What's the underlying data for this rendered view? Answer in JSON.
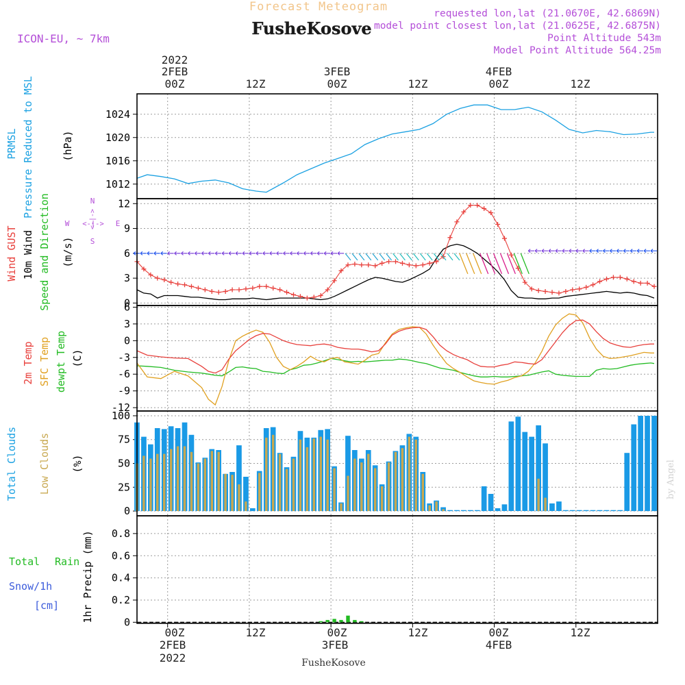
{
  "header": {
    "title": "Forecast Meteogram",
    "location": "FusheKosove",
    "model": "ICON-EU, ~ 7km",
    "requested": "requested lon,lat (21.0670E, 42.6869N)",
    "closest": "model point closest lon,lat (21.0625E, 42.6875N)",
    "altitude": "Point Altitude 543m",
    "model_altitude": "Model Point Altitude 564.25m"
  },
  "time_axis": {
    "top_year": "2022",
    "top_days": [
      "2FEB",
      "3FEB",
      "4FEB"
    ],
    "top_hours": [
      "00Z",
      "12Z",
      "00Z",
      "12Z",
      "00Z",
      "12Z"
    ],
    "bottom_hours": [
      "00Z",
      "12Z",
      "00Z",
      "12Z",
      "00Z",
      "12Z"
    ],
    "bottom_days": [
      "2FEB",
      "3FEB",
      "4FEB"
    ],
    "bottom_year": "2022",
    "footer": "FusheKosove"
  },
  "credit": "by Angel",
  "panels": {
    "pressure": {
      "labels": [
        "PRMSL",
        "Pressure Reduced to MSL",
        "(hPa)"
      ],
      "ticks": [
        "1012",
        "1016",
        "1020",
        "1024"
      ]
    },
    "wind": {
      "labels": [
        "Wind GUST",
        "10m Wind",
        "Speed and Direction",
        "(m/s)"
      ],
      "compass": {
        "n": "N",
        "s": "S",
        "w": "W",
        "e": "E",
        "arrow": "<-|->"
      },
      "ticks": [
        "0",
        "3",
        "6",
        "9",
        "12"
      ]
    },
    "temp": {
      "labels": [
        "2m Temp",
        "SFC Temp",
        "dewpt Temp",
        "(C)"
      ],
      "ticks": [
        "-12",
        "-9",
        "-6",
        "-3",
        "0",
        "3",
        "6"
      ]
    },
    "clouds": {
      "labels": [
        "Total Clouds",
        "Low Clouds",
        "(%)"
      ],
      "ticks": [
        "0",
        "25",
        "50",
        "75",
        "100"
      ]
    },
    "precip": {
      "labels": [
        "Total",
        "Rain",
        "Snow/1h",
        "[cm]",
        "1hr Precip (mm)"
      ],
      "ticks": [
        "0",
        "0.2",
        "0.4",
        "0.6",
        "0.8"
      ]
    }
  },
  "colors": {
    "pressure": "#1ba1e2",
    "gust": "#e8403c",
    "wind": "#000000",
    "t2m": "#e8403c",
    "sfc": "#e0a020",
    "dew": "#22bb22",
    "total_cloud": "#1a9ae6",
    "low_cloud": "#c8a850",
    "rain": "#22bb22",
    "snow": "#3b5bdb",
    "purple": "#b44fd8",
    "title_orange": "#f2c58a"
  },
  "chart_data": [
    {
      "id": "pressure",
      "type": "line",
      "x_unit": "hours since 2022-02-02 00Z",
      "x": [
        -4.5,
        -3,
        -1,
        1,
        3,
        5,
        7,
        9,
        11,
        13,
        14.5,
        17,
        19,
        21,
        23,
        25,
        27,
        29,
        31,
        33,
        35,
        37,
        39,
        41,
        43,
        45,
        47,
        49,
        51,
        53,
        55,
        57,
        59,
        61,
        63,
        65,
        67,
        69,
        71,
        71.5
      ],
      "values": [
        1013.0,
        1013.6,
        1013.3,
        1012.9,
        1012.1,
        1012.5,
        1012.7,
        1012.2,
        1011.2,
        1010.8,
        1010.6,
        1012.2,
        1013.6,
        1014.6,
        1015.6,
        1016.4,
        1017.2,
        1018.8,
        1019.8,
        1020.6,
        1021.0,
        1021.4,
        1022.4,
        1024.0,
        1025.0,
        1025.6,
        1025.6,
        1024.8,
        1024.8,
        1025.2,
        1024.4,
        1023.0,
        1021.4,
        1020.8,
        1021.2,
        1021.0,
        1020.5,
        1020.6,
        1020.9,
        1020.9
      ],
      "y_label": "(hPa)",
      "ylim": [
        1009.5,
        1027.5
      ]
    },
    {
      "id": "wind",
      "type": "line",
      "x": [
        -4.5,
        -3.5,
        -2.5,
        -1.5,
        -0.5,
        0.5,
        1.5,
        2.5,
        3.5,
        4.5,
        5.5,
        6.5,
        7.5,
        8.5,
        9.5,
        10.5,
        11.5,
        12.5,
        13.5,
        14.5,
        15.5,
        16.5,
        17.5,
        18.5,
        19.5,
        20.5,
        21.5,
        22.5,
        23.5,
        24.5,
        25.5,
        26.5,
        27.5,
        28.5,
        29.5,
        30.5,
        31.5,
        32.5,
        33.5,
        34.5,
        35.5,
        36.5,
        37.5,
        38.5,
        39.5,
        40.5,
        41.5,
        42.5,
        43.5,
        44.5,
        45.5,
        46.5,
        47.5,
        48.5,
        49.5,
        50.5,
        51.5,
        52.5,
        53.5,
        54.5,
        55.5,
        56.5,
        57.5,
        58.5,
        59.5,
        60.5,
        61.5,
        62.5,
        63.5,
        64.5,
        65.5,
        66.5,
        67.5,
        68.5,
        69.5,
        70.5,
        71.5
      ],
      "series": [
        {
          "name": "Wind GUST",
          "values": [
            5.0,
            4.1,
            3.4,
            3.0,
            2.8,
            2.5,
            2.3,
            2.2,
            2.0,
            1.8,
            1.6,
            1.4,
            1.3,
            1.4,
            1.6,
            1.6,
            1.7,
            1.8,
            2.0,
            2.0,
            1.8,
            1.6,
            1.3,
            1.0,
            0.8,
            0.6,
            0.7,
            0.9,
            1.6,
            2.7,
            3.9,
            4.6,
            4.7,
            4.6,
            4.6,
            4.5,
            4.8,
            5.0,
            5.0,
            4.8,
            4.6,
            4.5,
            4.6,
            4.8,
            5.0,
            5.6,
            7.9,
            9.8,
            11.0,
            11.8,
            11.8,
            11.4,
            10.9,
            9.5,
            7.8,
            5.8,
            4.2,
            2.5,
            1.7,
            1.5,
            1.4,
            1.3,
            1.2,
            1.4,
            1.6,
            1.7,
            1.9,
            2.2,
            2.6,
            2.9,
            3.1,
            3.1,
            2.9,
            2.6,
            2.4,
            2.4,
            2.0
          ]
        },
        {
          "name": "10m Wind",
          "values": [
            1.6,
            1.2,
            1.1,
            0.6,
            0.9,
            0.9,
            0.9,
            0.8,
            0.7,
            0.7,
            0.6,
            0.5,
            0.4,
            0.4,
            0.5,
            0.5,
            0.5,
            0.6,
            0.5,
            0.4,
            0.5,
            0.6,
            0.6,
            0.6,
            0.6,
            0.6,
            0.5,
            0.4,
            0.5,
            0.8,
            1.2,
            1.6,
            2.0,
            2.4,
            2.8,
            3.1,
            3.0,
            2.8,
            2.6,
            2.5,
            2.8,
            3.2,
            3.6,
            4.1,
            5.4,
            6.5,
            6.9,
            7.1,
            6.9,
            6.5,
            6.0,
            5.3,
            4.6,
            3.8,
            2.8,
            1.5,
            0.7,
            0.6,
            0.6,
            0.5,
            0.5,
            0.6,
            0.6,
            0.8,
            0.9,
            1.0,
            1.1,
            1.2,
            1.3,
            1.4,
            1.3,
            1.2,
            1.3,
            1.2,
            1.0,
            0.9,
            0.6
          ]
        }
      ],
      "y_label": "(m/s)",
      "ylim": [
        -0.3,
        12.6
      ]
    },
    {
      "id": "temperature",
      "type": "line",
      "x": [
        -4.5,
        -3,
        -1,
        1,
        3,
        5,
        6,
        7,
        8,
        9,
        10,
        11,
        12,
        13,
        14,
        15,
        16,
        17,
        18,
        19,
        20,
        21,
        22,
        23,
        24,
        25,
        26,
        27,
        28,
        29,
        30,
        31,
        32,
        33,
        34,
        35,
        36,
        37,
        38,
        39,
        40,
        41,
        42,
        43,
        44,
        45,
        46,
        47,
        48,
        49,
        50,
        51,
        52,
        53,
        54,
        55,
        56,
        57,
        58,
        59,
        60,
        61,
        62,
        63,
        64,
        65,
        66,
        67,
        68,
        69,
        70,
        71,
        71.5
      ],
      "series": [
        {
          "name": "2m Temp",
          "values": [
            -1.8,
            -2.6,
            -2.9,
            -3.1,
            -3.2,
            -4.6,
            -5.5,
            -5.8,
            -5.2,
            -3.3,
            -1.8,
            -0.8,
            0.2,
            0.9,
            1.3,
            1.2,
            0.6,
            0.0,
            -0.4,
            -0.7,
            -0.8,
            -0.9,
            -0.7,
            -0.6,
            -0.8,
            -1.2,
            -1.4,
            -1.5,
            -1.5,
            -1.7,
            -2.0,
            -1.8,
            -0.6,
            1.0,
            1.7,
            2.1,
            2.3,
            2.4,
            2.0,
            0.7,
            -0.8,
            -1.8,
            -2.5,
            -3.0,
            -3.4,
            -4.1,
            -4.6,
            -4.7,
            -4.7,
            -4.4,
            -4.2,
            -3.8,
            -3.9,
            -4.1,
            -4.2,
            -3.4,
            -1.8,
            -0.2,
            1.4,
            2.7,
            3.6,
            3.7,
            3.0,
            1.6,
            0.4,
            -0.4,
            -0.8,
            -1.1,
            -1.2,
            -0.9,
            -0.7,
            -0.6,
            -0.6
          ]
        },
        {
          "name": "SFC Temp",
          "values": [
            -4.0,
            -6.5,
            -6.8,
            -5.5,
            -6.3,
            -8.4,
            -10.5,
            -11.5,
            -8.2,
            -3.5,
            0.0,
            0.8,
            1.4,
            1.9,
            1.5,
            -0.3,
            -3.0,
            -4.6,
            -5.2,
            -4.6,
            -3.8,
            -2.8,
            -3.5,
            -3.8,
            -3.2,
            -3.0,
            -3.8,
            -4.0,
            -4.2,
            -3.5,
            -2.6,
            -2.3,
            -0.4,
            1.2,
            2.0,
            2.3,
            2.5,
            2.4,
            1.2,
            -0.8,
            -2.5,
            -4.1,
            -5.0,
            -5.7,
            -6.5,
            -7.2,
            -7.5,
            -7.7,
            -7.8,
            -7.4,
            -7.1,
            -6.6,
            -6.3,
            -5.5,
            -4.0,
            -1.9,
            0.8,
            2.8,
            4.0,
            4.8,
            4.6,
            3.2,
            0.5,
            -1.5,
            -2.8,
            -3.2,
            -3.1,
            -2.9,
            -2.7,
            -2.4,
            -2.1,
            -2.2,
            -2.2
          ]
        },
        {
          "name": "dewpt Temp",
          "values": [
            -4.5,
            -4.6,
            -4.8,
            -5.3,
            -5.6,
            -5.8,
            -6.0,
            -6.2,
            -6.3,
            -5.6,
            -4.8,
            -4.7,
            -4.9,
            -5.0,
            -5.5,
            -5.6,
            -5.8,
            -5.9,
            -5.2,
            -4.9,
            -4.4,
            -4.3,
            -4.0,
            -3.6,
            -3.2,
            -3.4,
            -3.6,
            -3.8,
            -3.7,
            -3.8,
            -3.7,
            -3.6,
            -3.5,
            -3.5,
            -3.3,
            -3.4,
            -3.6,
            -3.9,
            -4.1,
            -4.5,
            -4.9,
            -5.1,
            -5.3,
            -5.7,
            -6.0,
            -6.3,
            -6.5,
            -6.5,
            -6.4,
            -6.5,
            -6.5,
            -6.4,
            -6.3,
            -6.2,
            -5.9,
            -5.6,
            -5.4,
            -6.0,
            -6.2,
            -6.3,
            -6.4,
            -6.4,
            -6.4,
            -5.3,
            -5.0,
            -5.1,
            -5.0,
            -4.7,
            -4.4,
            -4.2,
            -4.1,
            -4.0,
            -4.1
          ]
        }
      ],
      "y_label": "(C)",
      "ylim": [
        -12.6,
        6.3
      ]
    },
    {
      "id": "clouds",
      "type": "bar",
      "x": [
        -4.5,
        -3.5,
        -2.5,
        -1.5,
        -0.5,
        0.5,
        1.5,
        2.5,
        3.5,
        4.5,
        5.5,
        6.5,
        7.5,
        8.5,
        9.5,
        10.5,
        11.5,
        12.5,
        13.5,
        14.5,
        15.5,
        16.5,
        17.5,
        18.5,
        19.5,
        20.5,
        21.5,
        22.5,
        23.5,
        24.5,
        25.5,
        26.5,
        27.5,
        28.5,
        29.5,
        30.5,
        31.5,
        32.5,
        33.5,
        34.5,
        35.5,
        36.5,
        37.5,
        38.5,
        39.5,
        40.5,
        41.5,
        42.5,
        43.5,
        44.5,
        45.5,
        46.5,
        47.5,
        48.5,
        49.5,
        50.5,
        51.5,
        52.5,
        53.5,
        54.5,
        55.5,
        56.5,
        57.5,
        58.5,
        59.5,
        60.5,
        61.5,
        62.5,
        63.5,
        64.5,
        65.5,
        66.5,
        67.5,
        68.5,
        69.5,
        70.5,
        71.5
      ],
      "series": [
        {
          "name": "Total Clouds",
          "values": [
            93,
            78,
            70,
            87,
            86,
            89,
            87,
            93,
            80,
            51,
            56,
            65,
            64,
            39,
            41,
            69,
            36,
            3,
            42,
            87,
            88,
            61,
            46,
            57,
            84,
            77,
            77,
            85,
            86,
            47,
            9,
            79,
            64,
            55,
            64,
            48,
            28,
            52,
            63,
            69,
            81,
            78,
            41,
            8,
            11,
            4,
            1,
            1,
            1,
            1,
            1,
            26,
            18,
            3,
            7,
            94,
            99,
            83,
            78,
            90,
            71,
            8,
            10,
            1,
            1,
            1,
            1,
            1,
            1,
            1,
            1,
            1,
            61,
            91,
            100,
            100,
            100
          ]
        },
        {
          "name": "Low Clouds",
          "values": [
            50,
            58,
            55,
            60,
            60,
            65,
            68,
            68,
            62,
            50,
            55,
            63,
            62,
            39,
            38,
            28,
            10,
            0,
            40,
            77,
            80,
            60,
            44,
            55,
            75,
            67,
            76,
            78,
            75,
            45,
            8,
            37,
            55,
            51,
            60,
            45,
            26,
            51,
            62,
            66,
            78,
            75,
            39,
            6,
            10,
            2,
            0,
            0,
            0,
            0,
            0,
            0,
            0,
            0,
            0,
            0,
            0,
            0,
            0,
            34,
            14,
            0,
            0,
            0,
            0,
            0,
            0,
            0,
            0,
            0,
            0,
            0,
            0,
            0,
            0,
            0,
            0
          ]
        }
      ],
      "y_label": "(%)",
      "ylim": [
        -5,
        105
      ]
    },
    {
      "id": "precip",
      "type": "bar",
      "x": [
        22.5,
        23.5,
        24.5,
        25.5,
        26.5,
        27.5,
        28.5
      ],
      "series": [
        {
          "name": "Total Rain",
          "values": [
            0.01,
            0.02,
            0.03,
            0.02,
            0.06,
            0.02,
            0.01
          ]
        },
        {
          "name": "Snow/1h",
          "values": [
            0,
            0,
            0,
            0,
            0,
            0,
            0
          ]
        }
      ],
      "y_label": "1hr Precip (mm)",
      "ylim": [
        -0.01,
        0.96
      ]
    }
  ]
}
